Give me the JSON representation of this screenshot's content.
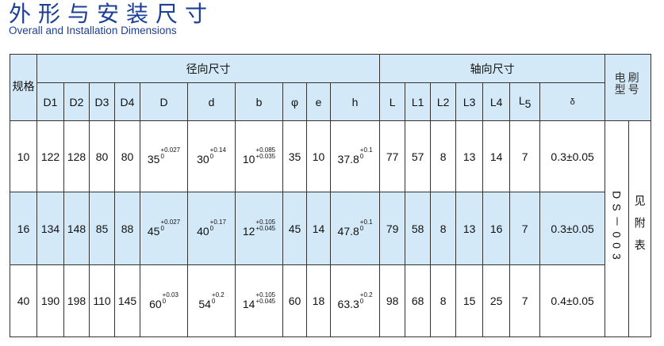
{
  "title": "外形与安装尺寸",
  "subtitle": "Overall and Installation Dimensions",
  "header": {
    "spec": "规格",
    "radial": "径向尺寸",
    "axial": "轴向尺寸",
    "brush_line1": "电刷",
    "brush_line2": "型号",
    "radial_cols": [
      "D1",
      "D2",
      "D3",
      "D4",
      "D",
      "d",
      "b",
      "φ",
      "e",
      "h"
    ],
    "axial_cols": [
      "L",
      "L1",
      "L2",
      "L3",
      "L4",
      "L5",
      "δ"
    ]
  },
  "rows": [
    {
      "spec": "10",
      "D1": "122",
      "D2": "128",
      "D3": "80",
      "D4": "80",
      "D": {
        "base": "35",
        "upper": "+0.027",
        "lower": "0"
      },
      "d": {
        "base": "30",
        "upper": "+0.14",
        "lower": "0"
      },
      "b": {
        "base": "10",
        "upper": "+0.085",
        "lower": "+0.035"
      },
      "phi": "35",
      "e": "10",
      "h": {
        "base": "37.8",
        "upper": "+0.1",
        "lower": "0"
      },
      "L": "77",
      "L1": "57",
      "L2": "8",
      "L3": "13",
      "L4": "14",
      "L5": "7",
      "delta": "0.3±0.05",
      "highlight": false
    },
    {
      "spec": "16",
      "D1": "134",
      "D2": "148",
      "D3": "85",
      "D4": "88",
      "D": {
        "base": "45",
        "upper": "+0.027",
        "lower": "0"
      },
      "d": {
        "base": "40",
        "upper": "+0.17",
        "lower": "0"
      },
      "b": {
        "base": "12",
        "upper": "+0.105",
        "lower": "+0.045"
      },
      "phi": "45",
      "e": "14",
      "h": {
        "base": "47.8",
        "upper": "+0.1",
        "lower": "0"
      },
      "L": "79",
      "L1": "58",
      "L2": "8",
      "L3": "13",
      "L4": "16",
      "L5": "7",
      "delta": "0.3±0.05",
      "highlight": true
    },
    {
      "spec": "40",
      "D1": "190",
      "D2": "198",
      "D3": "110",
      "D4": "145",
      "D": {
        "base": "60",
        "upper": "+0.03",
        "lower": "0"
      },
      "d": {
        "base": "54",
        "upper": "+0.2",
        "lower": "0"
      },
      "b": {
        "base": "14",
        "upper": "+0.105",
        "lower": "+0.045"
      },
      "phi": "60",
      "e": "18",
      "h": {
        "base": "63.3",
        "upper": "+0.2",
        "lower": "0"
      },
      "L": "98",
      "L1": "68",
      "L2": "8",
      "L3": "15",
      "L4": "25",
      "L5": "7",
      "delta": "0.4±0.05",
      "highlight": false
    }
  ],
  "brush_model": "DS－003",
  "see_table": "见附表",
  "colors": {
    "title": "#1c3f99",
    "header_bg": "#d4e9f8"
  }
}
